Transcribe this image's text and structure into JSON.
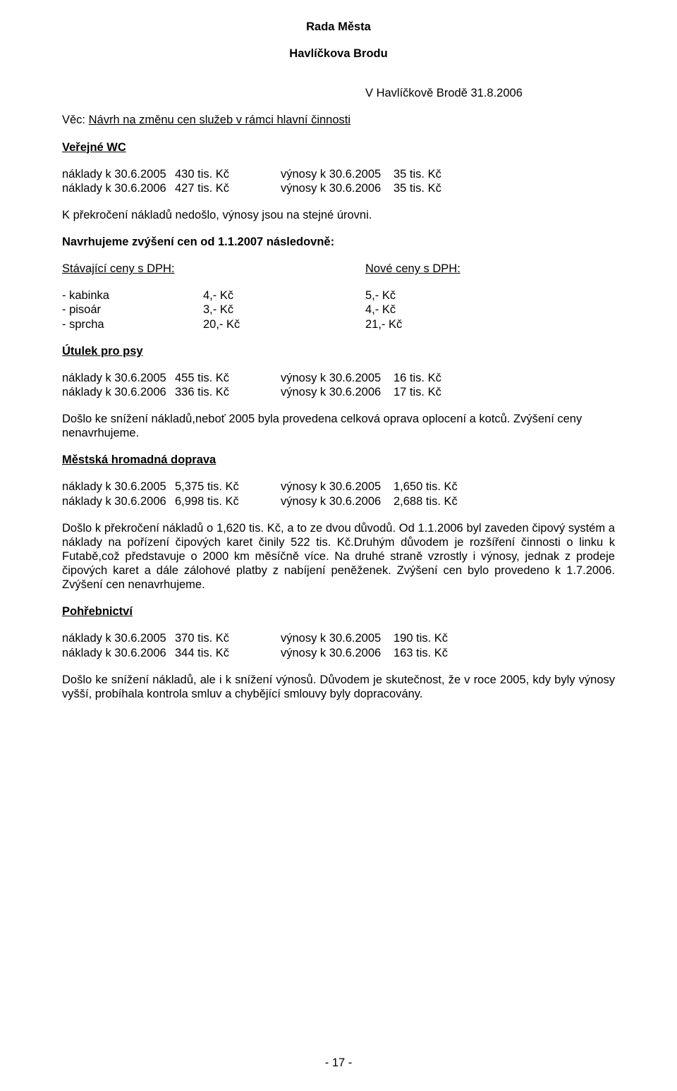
{
  "header": {
    "line1": "Rada Města",
    "line2": "Havlíčkova Brodu"
  },
  "date_place": "V Havlíčkově Brodě 31.8.2006",
  "subject": {
    "prefix": "Věc:  ",
    "title": "Návrh na změnu cen služeb v rámci hlavní činnosti"
  },
  "sections": {
    "wc": {
      "title": "Veřejné WC",
      "rows": [
        [
          "náklady k 30.6.2005",
          "430 tis. Kč",
          "výnosy k 30.6.2005",
          "35 tis. Kč"
        ],
        [
          "náklady k 30.6.2006",
          "427 tis. Kč",
          "výnosy k 30.6.2006",
          "35 tis. Kč"
        ]
      ],
      "note1": "K překročení nákladů nedošlo, výnosy jsou na stejné úrovni.",
      "note2": "Navrhujeme zvýšení cen od 1.1.2007 následovně:",
      "price_header_left": "Stávající ceny s DPH:",
      "price_header_right": "Nové ceny s DPH:",
      "prices": [
        [
          "- kabinka",
          "4,- Kč",
          "5,- Kč"
        ],
        [
          "- pisoár",
          "3,- Kč",
          "4,- Kč"
        ],
        [
          "- sprcha",
          "20,- Kč",
          "21,- Kč"
        ]
      ]
    },
    "utulek": {
      "title": "Útulek pro psy",
      "rows": [
        [
          "náklady k 30.6.2005",
          "455 tis. Kč",
          "výnosy k 30.6.2005",
          "16 tis. Kč"
        ],
        [
          "náklady k 30.6.2006",
          "336 tis. Kč",
          "výnosy k 30.6.2006",
          "17 tis. Kč"
        ]
      ],
      "note": "Došlo ke snížení nákladů,neboť 2005 byla provedena celková oprava oplocení a kotců. Zvýšení ceny nenavrhujeme."
    },
    "mhd": {
      "title": "Městská hromadná doprava",
      "rows": [
        [
          "náklady k 30.6.2005",
          "5,375 tis. Kč",
          "výnosy k 30.6.2005",
          "1,650 tis. Kč"
        ],
        [
          "náklady k 30.6.2006",
          "6,998 tis. Kč",
          "výnosy k 30.6.2006",
          "2,688 tis. Kč"
        ]
      ],
      "note": "Došlo k překročení nákladů o 1,620 tis. Kč, a to ze dvou důvodů. Od 1.1.2006 byl zaveden čipový systém a náklady na pořízení čipových karet činily 522 tis. Kč.Druhým důvodem je rozšíření činnosti o linku k Futabě,což představuje o 2000 km měsíčně více. Na druhé straně vzrostly i výnosy, jednak z prodeje čipových karet a dále zálohové platby z nabíjení peněženek. Zvýšení cen bylo provedeno k 1.7.2006. Zvýšení cen nenavrhujeme."
    },
    "pohreb": {
      "title": "Pohřebnictví",
      "rows": [
        [
          "náklady k 30.6.2005",
          "370 tis. Kč",
          "výnosy k 30.6.2005",
          "190 tis. Kč"
        ],
        [
          "náklady k 30.6.2006",
          "344 tis. Kč",
          "výnosy k 30.6.2006",
          "163 tis. Kč"
        ]
      ],
      "note": "Došlo ke snížení nákladů, ale i k snížení výnosů. Důvodem je skutečnost, že  v roce 2005, kdy byly výnosy vyšší, probíhala kontrola smluv a chybějící smlouvy byly dopracovány."
    }
  },
  "page_number": "- 17 -"
}
